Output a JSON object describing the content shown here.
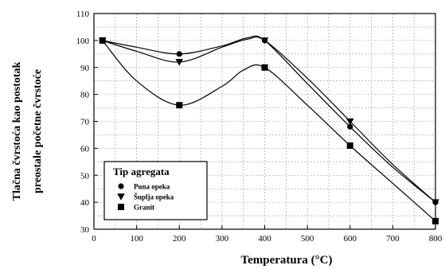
{
  "chart_data": {
    "type": "line",
    "xlabel": "Temperatura (°C)",
    "ylabel_lines": [
      "Tlačna čvrstoća kao postotak",
      "preostale početne čvrstoće"
    ],
    "xlim": [
      0,
      800
    ],
    "ylim": [
      30,
      110
    ],
    "x_ticks": [
      0,
      100,
      200,
      300,
      400,
      500,
      600,
      700,
      800
    ],
    "y_ticks": [
      30,
      40,
      50,
      60,
      70,
      80,
      90,
      100,
      110
    ],
    "grid": true,
    "legend": {
      "title": "Tip agregata",
      "placement": "bottom-left"
    },
    "series": [
      {
        "name": "Puna opeka",
        "marker": "circle",
        "color": "#000000",
        "points": [
          [
            20,
            100
          ],
          [
            200,
            95
          ],
          [
            400,
            100
          ],
          [
            600,
            68
          ],
          [
            800,
            40
          ]
        ],
        "curve": [
          [
            20,
            100
          ],
          [
            100,
            97.5
          ],
          [
            200,
            95
          ],
          [
            300,
            98
          ],
          [
            360,
            101
          ],
          [
            400,
            100
          ],
          [
            500,
            84
          ],
          [
            600,
            68
          ],
          [
            700,
            53
          ],
          [
            800,
            40
          ]
        ]
      },
      {
        "name": "Šuplja opeka",
        "marker": "triangle-down",
        "color": "#000000",
        "points": [
          [
            20,
            100
          ],
          [
            200,
            92
          ],
          [
            400,
            100
          ],
          [
            600,
            70
          ],
          [
            800,
            40
          ]
        ],
        "curve": [
          [
            20,
            100
          ],
          [
            100,
            96
          ],
          [
            200,
            92
          ],
          [
            300,
            97.5
          ],
          [
            360,
            100.5
          ],
          [
            400,
            100
          ],
          [
            500,
            86
          ],
          [
            600,
            70
          ],
          [
            700,
            54
          ],
          [
            800,
            40
          ]
        ]
      },
      {
        "name": "Granit",
        "marker": "square",
        "color": "#000000",
        "points": [
          [
            20,
            100
          ],
          [
            200,
            76
          ],
          [
            400,
            90
          ],
          [
            600,
            61
          ],
          [
            800,
            33
          ]
        ],
        "curve": [
          [
            20,
            100
          ],
          [
            100,
            85
          ],
          [
            200,
            76
          ],
          [
            300,
            83
          ],
          [
            350,
            89
          ],
          [
            400,
            90
          ],
          [
            500,
            76
          ],
          [
            600,
            61
          ],
          [
            700,
            47
          ],
          [
            800,
            33
          ]
        ]
      }
    ]
  }
}
